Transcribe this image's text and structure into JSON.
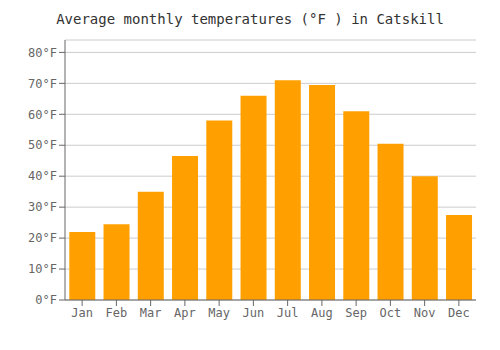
{
  "chart_data": {
    "type": "bar",
    "title": "Average monthly temperatures (°F ) in Catskill",
    "categories": [
      "Jan",
      "Feb",
      "Mar",
      "Apr",
      "May",
      "Jun",
      "Jul",
      "Aug",
      "Sep",
      "Oct",
      "Nov",
      "Dec"
    ],
    "values": [
      22,
      24.5,
      35,
      46.5,
      58,
      66,
      71,
      69.5,
      61,
      50.5,
      40,
      27.5
    ],
    "color": "#FFA000",
    "ylim": [
      0,
      84
    ],
    "yticks": [
      {
        "value": 0,
        "label": "0°F"
      },
      {
        "value": 10,
        "label": "10°F"
      },
      {
        "value": 20,
        "label": "20°F"
      },
      {
        "value": 30,
        "label": "30°F"
      },
      {
        "value": 40,
        "label": "40°F"
      },
      {
        "value": 50,
        "label": "50°F"
      },
      {
        "value": 60,
        "label": "60°F"
      },
      {
        "value": 70,
        "label": "70°F"
      },
      {
        "value": 80,
        "label": "80°F"
      }
    ],
    "grid": true
  }
}
